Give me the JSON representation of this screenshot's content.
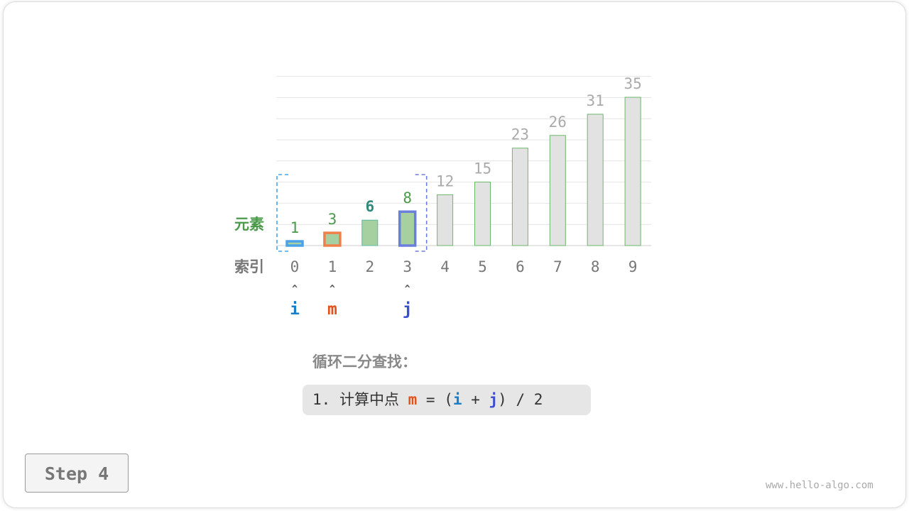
{
  "chart_data": {
    "type": "bar",
    "categories": [
      "0",
      "1",
      "2",
      "3",
      "4",
      "5",
      "6",
      "7",
      "8",
      "9"
    ],
    "values": [
      1,
      3,
      6,
      8,
      12,
      15,
      23,
      26,
      31,
      35
    ],
    "row_labels": {
      "elements": "元素",
      "index": "索引"
    },
    "grid": true,
    "search_range": [
      0,
      3
    ],
    "pointers": [
      {
        "name": "i",
        "index": 0,
        "color": "#1a7fc8"
      },
      {
        "name": "m",
        "index": 1,
        "color": "#e6501a"
      },
      {
        "name": "j",
        "index": 3,
        "color": "#3a4ed0"
      }
    ],
    "colors": {
      "active_fill": "#a6d0a0",
      "inactive_fill": "#e2e2e2",
      "bar_border": "#6ab86a",
      "active_label": "#4a9a4a",
      "inactive_label": "#aaaaaa",
      "highlight_label": "#2e8a7a"
    }
  },
  "caption": {
    "title": "循环二分查找：",
    "step_num": "1.",
    "step_text": "计算中点",
    "m": "m",
    "eq": "=",
    "lp": "(",
    "i": "i",
    "plus": "+",
    "j": "j",
    "rp": ")",
    "div": "/",
    "two": "2"
  },
  "step_label": "Step 4",
  "watermark": "www.hello-algo.com"
}
